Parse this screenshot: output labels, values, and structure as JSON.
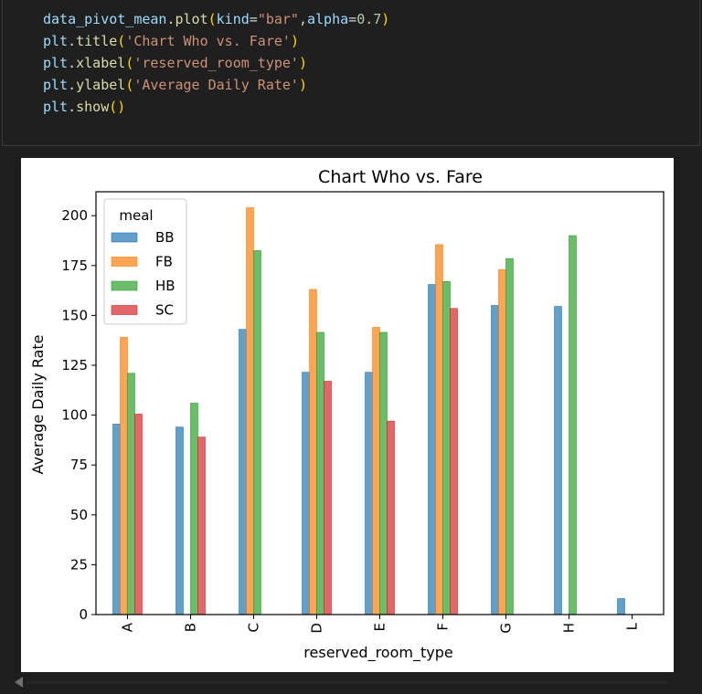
{
  "code_cell": {
    "lines": [
      [
        {
          "t": "data_pivot_mean",
          "c": "var"
        },
        {
          "t": ".",
          "c": "op"
        },
        {
          "t": "plot",
          "c": "fn"
        },
        {
          "t": "(",
          "c": "par"
        },
        {
          "t": "kind",
          "c": "var"
        },
        {
          "t": "=",
          "c": "op"
        },
        {
          "t": "\"bar\"",
          "c": "str"
        },
        {
          "t": ",",
          "c": "op"
        },
        {
          "t": "alpha",
          "c": "var"
        },
        {
          "t": "=",
          "c": "op"
        },
        {
          "t": "0.7",
          "c": "num"
        },
        {
          "t": ")",
          "c": "par"
        }
      ],
      [
        {
          "t": "plt",
          "c": "var"
        },
        {
          "t": ".",
          "c": "op"
        },
        {
          "t": "title",
          "c": "fn"
        },
        {
          "t": "(",
          "c": "par"
        },
        {
          "t": "'Chart Who vs. Fare'",
          "c": "str"
        },
        {
          "t": ")",
          "c": "par"
        }
      ],
      [
        {
          "t": "plt",
          "c": "var"
        },
        {
          "t": ".",
          "c": "op"
        },
        {
          "t": "xlabel",
          "c": "fn"
        },
        {
          "t": "(",
          "c": "par"
        },
        {
          "t": "'reserved_room_type'",
          "c": "str"
        },
        {
          "t": ")",
          "c": "par"
        }
      ],
      [
        {
          "t": "plt",
          "c": "var"
        },
        {
          "t": ".",
          "c": "op"
        },
        {
          "t": "ylabel",
          "c": "fn"
        },
        {
          "t": "(",
          "c": "par"
        },
        {
          "t": "'Average Daily Rate'",
          "c": "str"
        },
        {
          "t": ")",
          "c": "par"
        }
      ],
      [
        {
          "t": "plt",
          "c": "var"
        },
        {
          "t": ".",
          "c": "op"
        },
        {
          "t": "show",
          "c": "fn"
        },
        {
          "t": "()",
          "c": "par"
        }
      ]
    ]
  },
  "chart_data": {
    "type": "bar",
    "title": "Chart Who vs. Fare",
    "xlabel": "reserved_room_type",
    "ylabel": "Average Daily Rate",
    "ylim": [
      0,
      212
    ],
    "yticks": [
      0,
      25,
      50,
      75,
      100,
      125,
      150,
      175,
      200
    ],
    "categories": [
      "A",
      "B",
      "C",
      "D",
      "E",
      "F",
      "G",
      "H",
      "L"
    ],
    "legend_title": "meal",
    "legend_position": "upper-left",
    "alpha": 0.7,
    "series": [
      {
        "name": "BB",
        "color": "#1f77b4",
        "values": [
          95.5,
          94,
          143,
          121.5,
          121.5,
          165.5,
          155,
          154.5,
          8
        ]
      },
      {
        "name": "FB",
        "color": "#ff7f0e",
        "values": [
          139,
          null,
          204,
          163,
          144,
          185.5,
          173,
          null,
          null
        ]
      },
      {
        "name": "HB",
        "color": "#2ca02c",
        "values": [
          121,
          106,
          182.5,
          141.5,
          141.5,
          167,
          178.5,
          190,
          null
        ]
      },
      {
        "name": "SC",
        "color": "#d62728",
        "values": [
          100.5,
          89,
          null,
          117,
          97,
          153.5,
          null,
          null,
          null
        ]
      }
    ]
  }
}
